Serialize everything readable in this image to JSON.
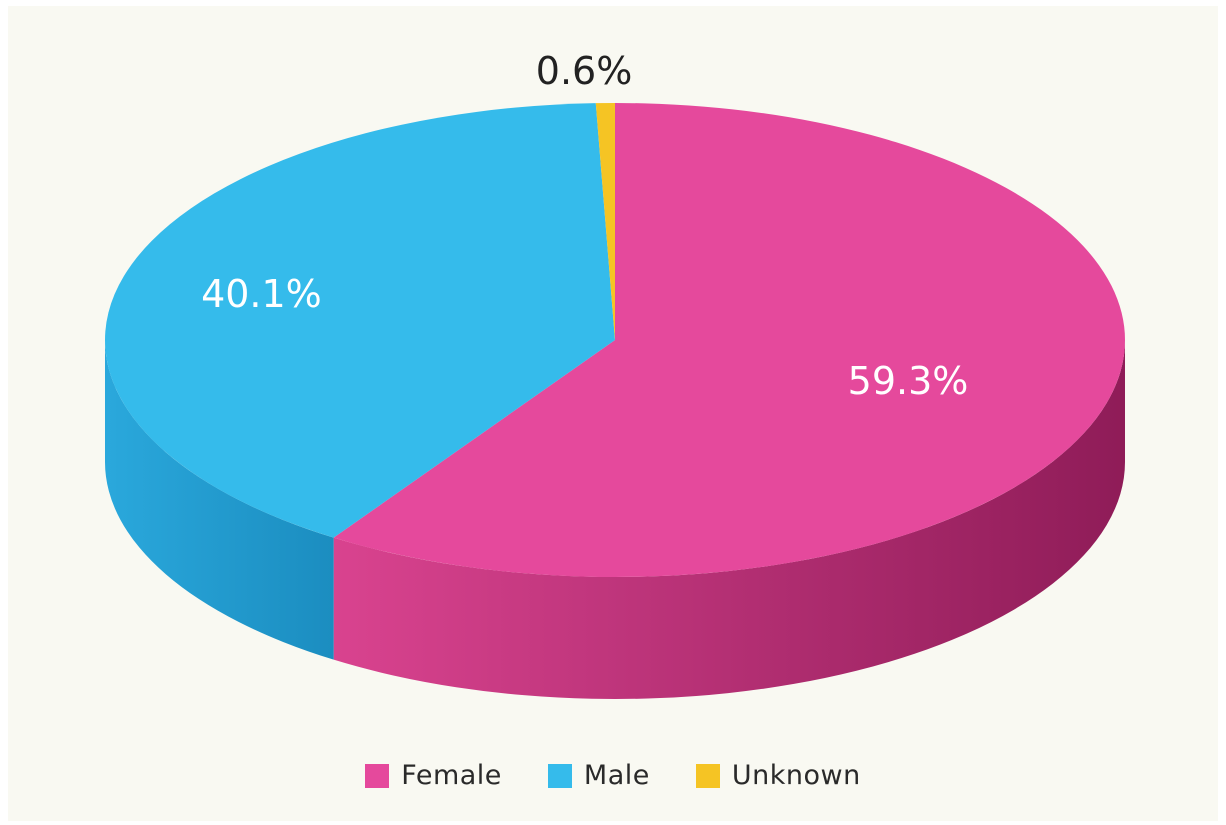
{
  "chart_data": {
    "type": "pie",
    "style": "3d",
    "title": "",
    "categories": [
      "Female",
      "Male",
      "Unknown"
    ],
    "values": [
      59.3,
      40.1,
      0.6
    ],
    "labels": [
      "59.3%",
      "40.1%",
      "0.6%"
    ],
    "colors": [
      "#e5499c",
      "#35bbeb",
      "#f5c424"
    ],
    "side_colors": [
      "#b92977",
      "#1f9bcf",
      "#d6a614"
    ],
    "legend_position": "bottom",
    "legend": [
      {
        "label": "Female",
        "color": "#e5499c"
      },
      {
        "label": "Male",
        "color": "#35bbeb"
      },
      {
        "label": "Unknown",
        "color": "#f5c424"
      }
    ]
  }
}
